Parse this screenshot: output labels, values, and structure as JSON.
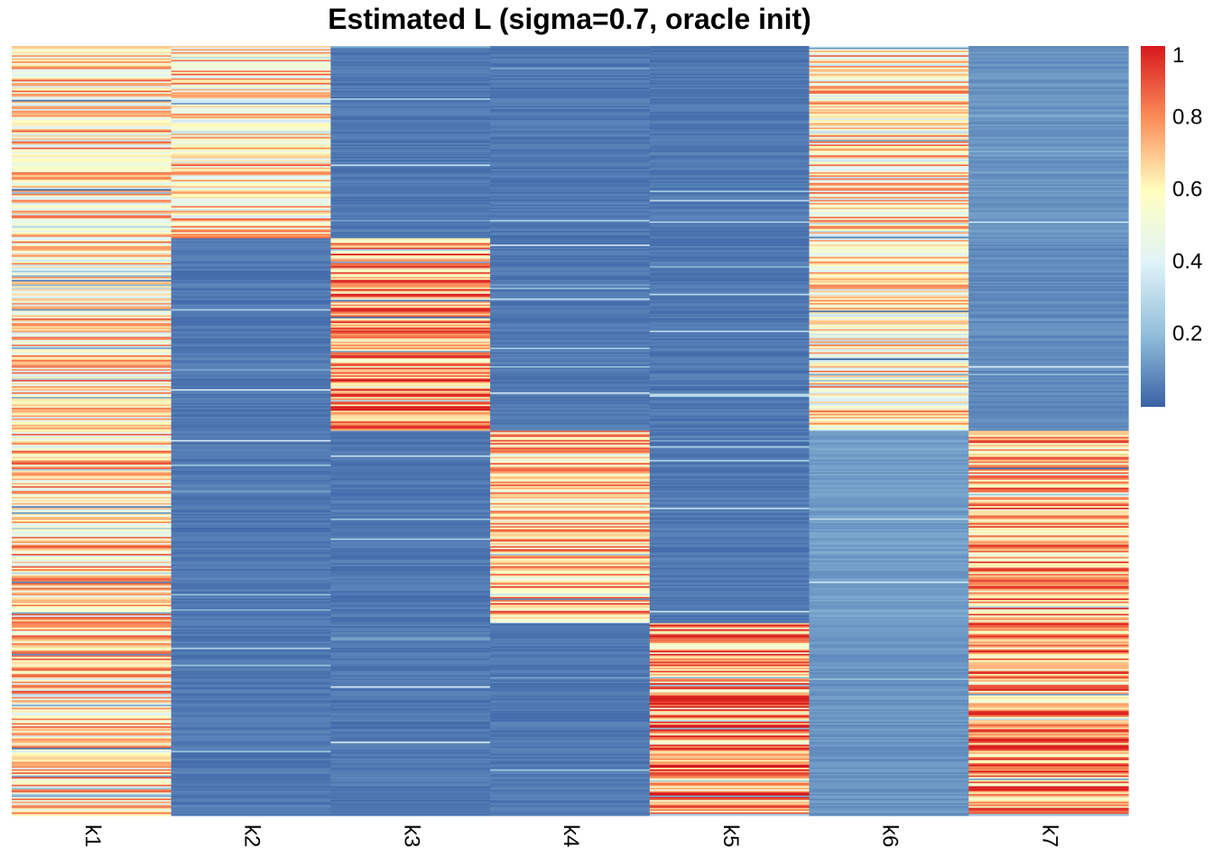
{
  "chart_data": {
    "type": "heatmap",
    "title": "Estimated L (sigma=0.7, oracle init)",
    "xlabel": "",
    "ylabel": "",
    "columns": [
      "k1",
      "k2",
      "k3",
      "k4",
      "k5",
      "k6",
      "k7"
    ],
    "n_rows": 1000,
    "value_range": [
      0,
      1
    ],
    "row_blocks": [
      {
        "rows": [
          0,
          249
        ],
        "levels": [
          0.62,
          0.62,
          0.02,
          0.02,
          0.02,
          0.6,
          0.08
        ]
      },
      {
        "rows": [
          250,
          499
        ],
        "levels": [
          0.62,
          0.02,
          0.75,
          0.02,
          0.02,
          0.6,
          0.06
        ]
      },
      {
        "rows": [
          500,
          749
        ],
        "levels": [
          0.64,
          0.02,
          0.02,
          0.7,
          0.02,
          0.1,
          0.72
        ]
      },
      {
        "rows": [
          750,
          999
        ],
        "levels": [
          0.64,
          0.02,
          0.02,
          0.02,
          0.78,
          0.08,
          0.76
        ]
      }
    ],
    "colorscale": {
      "stops": [
        0,
        0.2,
        0.4,
        0.6,
        0.8,
        1
      ],
      "colors": [
        "#3A62A5",
        "#91BFDB",
        "#E0F3F8",
        "#FFFFBF",
        "#FC8D59",
        "#D7191C"
      ],
      "tick_labels": [
        "0.2",
        "0.4",
        "0.6",
        "0.8",
        "1"
      ],
      "tick_values": [
        0.2,
        0.4,
        0.6,
        0.8,
        1.0
      ]
    },
    "legend": "right"
  }
}
